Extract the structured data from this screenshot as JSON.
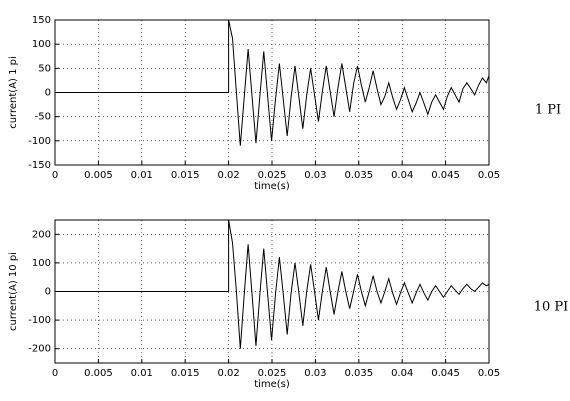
{
  "chart_data": [
    {
      "type": "line",
      "ylabel": "current(A) 1 pi",
      "xlabel": "time(s)",
      "annotation": "1 PI",
      "color": "#000000",
      "grid": true,
      "xlim": [
        0,
        0.05
      ],
      "ylim": [
        -150,
        150
      ],
      "xticks": [
        0,
        0.005,
        0.01,
        0.015,
        0.02,
        0.025,
        0.03,
        0.035,
        0.04,
        0.045,
        0.05
      ],
      "yticks": [
        -150,
        -100,
        -50,
        0,
        50,
        100,
        150
      ],
      "x": [
        0,
        0.02,
        0.02,
        0.02045,
        0.0209,
        0.02135,
        0.0218,
        0.02225,
        0.0227,
        0.02315,
        0.0236,
        0.02405,
        0.0245,
        0.02495,
        0.0254,
        0.02585,
        0.0263,
        0.02675,
        0.0272,
        0.02765,
        0.0281,
        0.02855,
        0.029,
        0.02945,
        0.0299,
        0.03035,
        0.0308,
        0.03125,
        0.0317,
        0.03215,
        0.0326,
        0.03305,
        0.0335,
        0.03395,
        0.0344,
        0.03485,
        0.0353,
        0.03575,
        0.0362,
        0.03665,
        0.0371,
        0.03755,
        0.038,
        0.03845,
        0.0389,
        0.03935,
        0.0398,
        0.04025,
        0.0407,
        0.04115,
        0.0416,
        0.04205,
        0.0425,
        0.04295,
        0.0434,
        0.04385,
        0.0443,
        0.04475,
        0.0452,
        0.04565,
        0.0461,
        0.04655,
        0.047,
        0.04745,
        0.0479,
        0.04835,
        0.0488,
        0.04925,
        0.0497,
        0.05
      ],
      "values": [
        0,
        0,
        150,
        112,
        0,
        -110,
        -10,
        90,
        -8,
        -105,
        -8,
        85,
        -8,
        -100,
        -15,
        60,
        -15,
        -90,
        -10,
        55,
        -10,
        -75,
        -5,
        50,
        -5,
        -60,
        2,
        55,
        2,
        -50,
        10,
        60,
        10,
        -40,
        18,
        55,
        15,
        -20,
        10,
        45,
        8,
        -25,
        -8,
        20,
        -10,
        -35,
        -15,
        10,
        -15,
        -40,
        -22,
        0,
        -22,
        -45,
        -20,
        -5,
        -20,
        -35,
        -8,
        10,
        -5,
        -20,
        8,
        20,
        8,
        -5,
        15,
        30,
        20,
        35
      ]
    },
    {
      "type": "line",
      "ylabel": "current(A) 10 pi",
      "xlabel": "time(s)",
      "annotation": "10 PI",
      "color": "#000000",
      "grid": true,
      "xlim": [
        0,
        0.05
      ],
      "ylim": [
        -250,
        250
      ],
      "xticks": [
        0,
        0.005,
        0.01,
        0.015,
        0.02,
        0.025,
        0.03,
        0.035,
        0.04,
        0.045,
        0.05
      ],
      "yticks": [
        -200,
        -100,
        0,
        100,
        200
      ],
      "x": [
        0,
        0.02,
        0.02,
        0.02045,
        0.0209,
        0.02135,
        0.0218,
        0.02225,
        0.0227,
        0.02315,
        0.0236,
        0.02405,
        0.0245,
        0.02495,
        0.0254,
        0.02585,
        0.0263,
        0.02675,
        0.0272,
        0.02765,
        0.0281,
        0.02855,
        0.029,
        0.02945,
        0.0299,
        0.03035,
        0.0308,
        0.03125,
        0.0317,
        0.03215,
        0.0326,
        0.03305,
        0.0335,
        0.03395,
        0.0344,
        0.03485,
        0.0353,
        0.03575,
        0.0362,
        0.03665,
        0.0371,
        0.03755,
        0.038,
        0.03845,
        0.0389,
        0.03935,
        0.0398,
        0.04025,
        0.0407,
        0.04115,
        0.0416,
        0.04205,
        0.0425,
        0.04295,
        0.0434,
        0.04385,
        0.0443,
        0.04475,
        0.0452,
        0.04565,
        0.0461,
        0.04655,
        0.047,
        0.04745,
        0.0479,
        0.04835,
        0.0488,
        0.04925,
        0.0497,
        0.05
      ],
      "values": [
        0,
        0,
        250,
        170,
        0,
        -200,
        -10,
        165,
        -10,
        -190,
        -10,
        150,
        -10,
        -170,
        -10,
        120,
        -10,
        -150,
        -5,
        100,
        -5,
        -120,
        0,
        95,
        0,
        -100,
        0,
        85,
        0,
        -80,
        0,
        70,
        0,
        -60,
        0,
        60,
        0,
        -50,
        0,
        55,
        0,
        -40,
        0,
        45,
        -5,
        -45,
        -5,
        30,
        -5,
        -40,
        -5,
        25,
        -5,
        -30,
        0,
        20,
        0,
        -20,
        0,
        20,
        5,
        -10,
        10,
        25,
        10,
        0,
        15,
        30,
        20,
        25
      ]
    }
  ]
}
